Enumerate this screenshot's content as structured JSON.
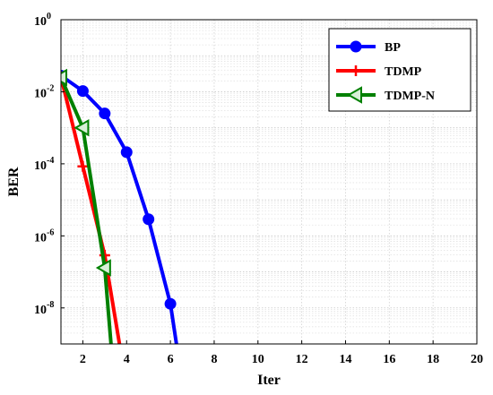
{
  "chart_data": {
    "type": "line",
    "xlabel": "Iter",
    "ylabel": "BER",
    "xlim": [
      1,
      20
    ],
    "ylim": [
      1e-09,
      1
    ],
    "yscale": "log",
    "grid": true,
    "legend_position": "top-right",
    "x_ticks": [
      2,
      4,
      6,
      8,
      10,
      12,
      14,
      16,
      18,
      20
    ],
    "y_ticks": [
      {
        "base": "10",
        "exp": "0",
        "value": 1
      },
      {
        "base": "10",
        "exp": "-2",
        "value": 0.01
      },
      {
        "base": "10",
        "exp": "-4",
        "value": 0.0001
      },
      {
        "base": "10",
        "exp": "-6",
        "value": 1e-06
      },
      {
        "base": "10",
        "exp": "-8",
        "value": 1e-08
      }
    ],
    "series": [
      {
        "name": "BP",
        "color": "#0000ff",
        "marker": "circle",
        "x": [
          1,
          2,
          3,
          4,
          5,
          6,
          6.3
        ],
        "y": [
          0.028,
          0.0105,
          0.0025,
          0.00021,
          2.9e-06,
          1.3e-08,
          8e-10
        ]
      },
      {
        "name": "TDMP",
        "color": "#ff0000",
        "marker": "plus",
        "x": [
          1,
          2,
          3,
          3.7
        ],
        "y": [
          0.026,
          8.5e-05,
          2.9e-07,
          8e-10
        ]
      },
      {
        "name": "TDMP-N",
        "color": "#008000",
        "marker": "triangle-left",
        "x": [
          1,
          2,
          3,
          3.3
        ],
        "y": [
          0.025,
          0.001,
          1.3e-07,
          8e-10
        ]
      }
    ]
  }
}
